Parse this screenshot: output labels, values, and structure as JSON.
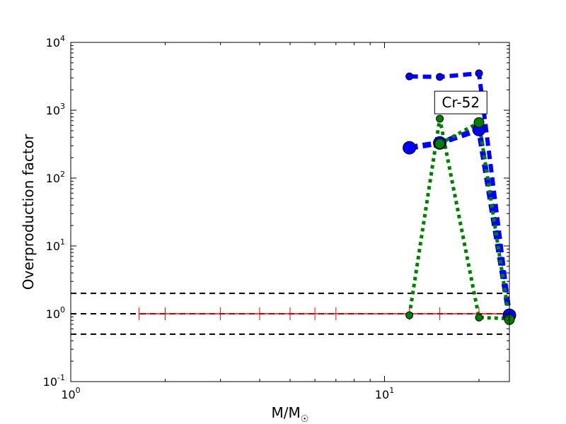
{
  "chart_data": {
    "type": "line",
    "xscale": "log",
    "yscale": "log",
    "xlim": [
      1,
      25
    ],
    "ylim": [
      0.1,
      10000
    ],
    "ylabel": "Overproduction factor",
    "xlabel": "M/M",
    "xlabel_sub": "☉",
    "x_ticks": [
      {
        "base": "10",
        "exp": "0",
        "value": 1
      },
      {
        "base": "10",
        "exp": "1",
        "value": 10
      }
    ],
    "y_ticks": [
      {
        "base": "10",
        "exp": "-1",
        "value": 0.1
      },
      {
        "base": "10",
        "exp": "0",
        "value": 1
      },
      {
        "base": "10",
        "exp": "1",
        "value": 10
      },
      {
        "base": "10",
        "exp": "2",
        "value": 100
      },
      {
        "base": "10",
        "exp": "3",
        "value": 1000
      },
      {
        "base": "10",
        "exp": "4",
        "value": 10000
      }
    ],
    "annotation": {
      "text": "Cr-52",
      "x": 17.5,
      "y": 1300
    },
    "reference_lines": [
      {
        "y": 2.0,
        "color": "#000000",
        "style": "dashed"
      },
      {
        "y": 0.5,
        "color": "#000000",
        "style": "dashed"
      },
      {
        "y": 1.0,
        "color": "#000000",
        "style": "dashed"
      }
    ],
    "series": [
      {
        "color": "#ff0000",
        "style": "solid",
        "marker": "plus",
        "x": [
          1.65,
          2,
          3,
          4,
          5,
          6,
          7,
          12,
          15,
          20,
          25
        ],
        "y": [
          1,
          1,
          1,
          1,
          1,
          1,
          1,
          1,
          1,
          1,
          1
        ]
      },
      {
        "color": "#0000ff",
        "style": "dashed",
        "marker": "circle",
        "marker_size": "small",
        "x": [
          12,
          15,
          20,
          25
        ],
        "y": [
          3150,
          3100,
          3500,
          1.0
        ]
      },
      {
        "color": "#0000ff",
        "style": "dashed",
        "marker": "circle",
        "marker_size": "large",
        "x": [
          12,
          15,
          20,
          25
        ],
        "y": [
          280,
          330,
          520,
          0.95
        ]
      },
      {
        "color": "#008000",
        "style": "dotted",
        "marker": "circle",
        "marker_size": "small",
        "x": [
          12,
          15,
          20,
          25
        ],
        "y": [
          0.95,
          750,
          0.88,
          0.85
        ]
      },
      {
        "color": "#008000",
        "style": "dotted",
        "marker": "circle",
        "marker_size": "medium",
        "x": [
          15,
          20,
          25
        ],
        "y": [
          320,
          660,
          0.82
        ]
      }
    ]
  }
}
